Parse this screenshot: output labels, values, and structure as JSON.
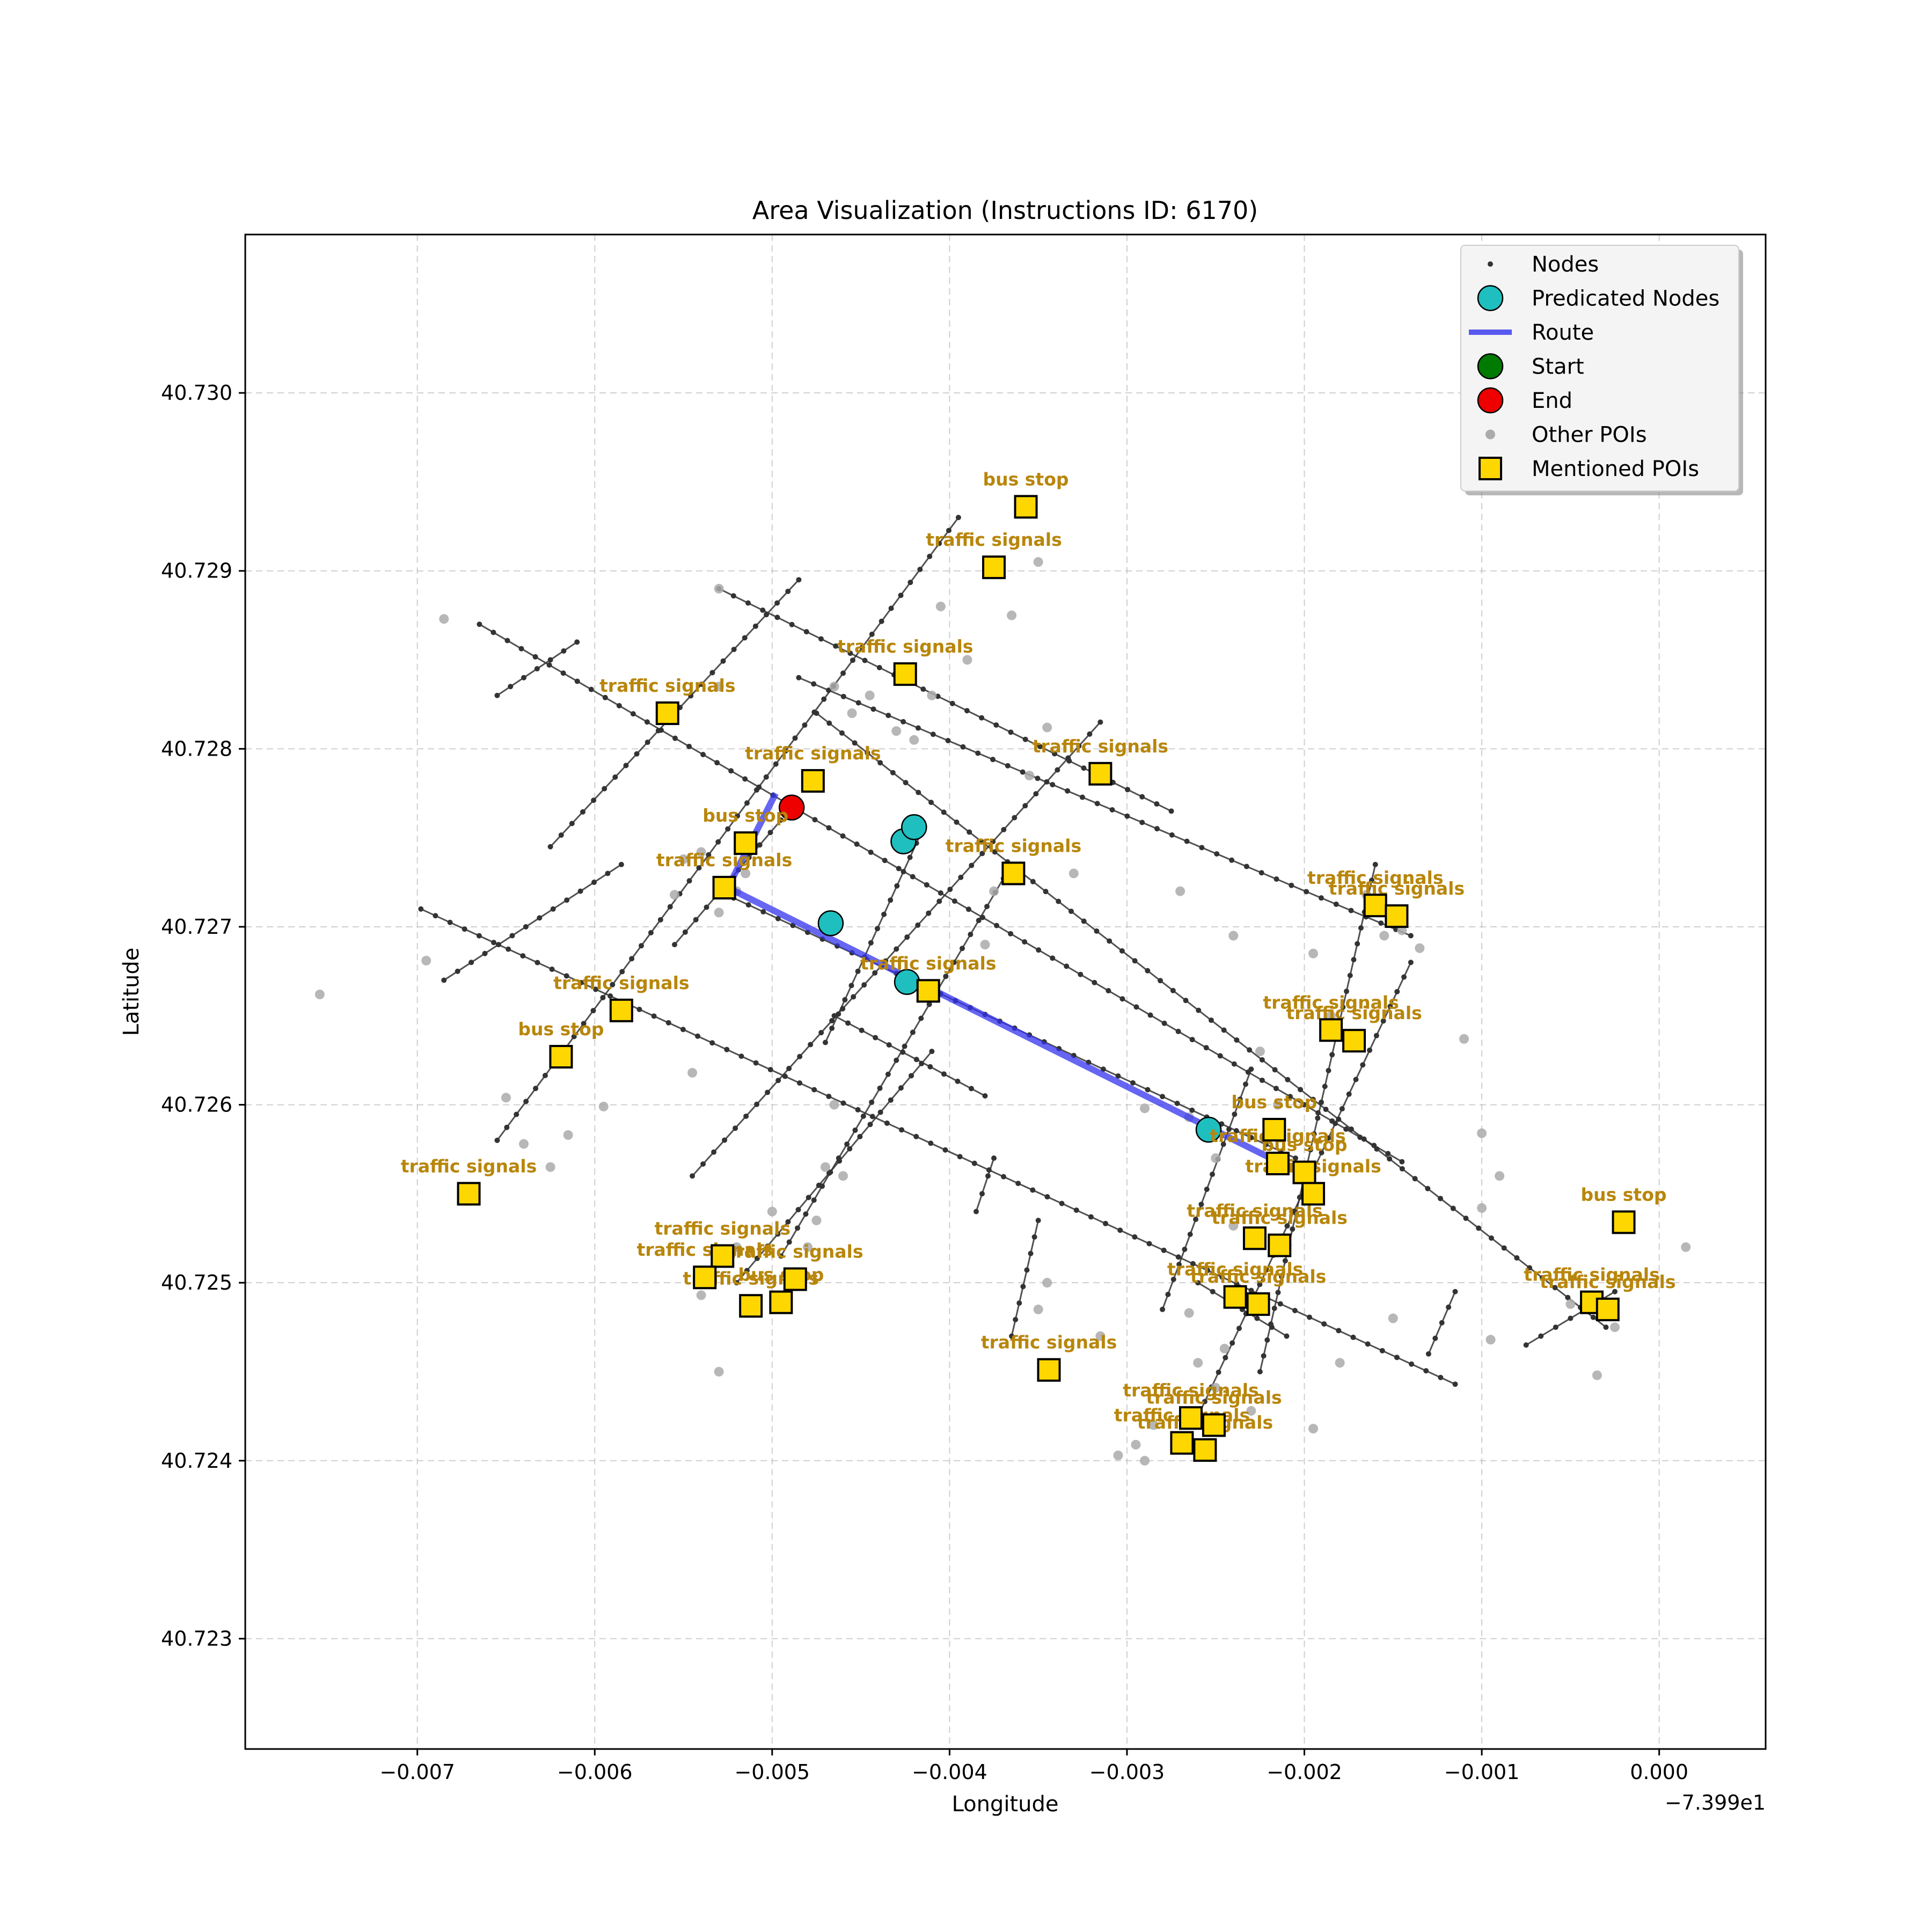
{
  "chart_data": {
    "type": "scatter",
    "title": "Area Visualization (Instructions ID: 6170)",
    "xlabel": "Longitude",
    "ylabel": "Latitude",
    "x_offset_label": "−7.399e1",
    "xlim": [
      -0.00797,
      0.0006
    ],
    "ylim": [
      40.72238,
      40.73089
    ],
    "xticks": [
      -0.007,
      -0.006,
      -0.005,
      -0.004,
      -0.003,
      -0.002,
      -0.001,
      0.0
    ],
    "xtick_labels": [
      "−0.007",
      "−0.006",
      "−0.005",
      "−0.004",
      "−0.003",
      "−0.002",
      "−0.001",
      "0.000"
    ],
    "yticks": [
      40.723,
      40.724,
      40.725,
      40.726,
      40.727,
      40.728,
      40.729,
      40.73
    ],
    "ytick_labels": [
      "40.723",
      "40.724",
      "40.725",
      "40.726",
      "40.727",
      "40.728",
      "40.729",
      "40.730"
    ],
    "grid": true,
    "legend_position": "top-right",
    "colors": {
      "nodes": "#333333",
      "predicated": "#1fbfbf",
      "route": "#3333ee",
      "start": "#007a00",
      "end": "#ee0000",
      "other_poi": "#aaaaaa",
      "mentioned_poi": "#ffd700",
      "poi_label": "#b8860b"
    },
    "legend": [
      {
        "key": "nodes",
        "label": "Nodes"
      },
      {
        "key": "predicated",
        "label": "Predicated Nodes"
      },
      {
        "key": "route",
        "label": "Route"
      },
      {
        "key": "start",
        "label": "Start"
      },
      {
        "key": "end",
        "label": "End"
      },
      {
        "key": "other_poi",
        "label": "Other POIs"
      },
      {
        "key": "mentioned_poi",
        "label": "Mentioned POIs"
      }
    ],
    "streets": [
      [
        [
          -0.00665,
          40.7287
        ],
        [
          -0.00145,
          40.72568
        ]
      ],
      [
        [
          -0.00698,
          40.7271
        ],
        [
          -0.00115,
          40.72443
        ]
      ],
      [
        [
          -0.0053,
          40.7289
        ],
        [
          -0.00275,
          40.72765
        ]
      ],
      [
        [
          -0.0053,
          40.7272
        ],
        [
          -0.00205,
          40.7257
        ]
      ],
      [
        [
          -0.00475,
          40.7282
        ],
        [
          -0.0003,
          40.72475
        ]
      ],
      [
        [
          -0.00485,
          40.7284
        ],
        [
          -0.0014,
          40.72695
        ]
      ],
      [
        [
          -0.00465,
          40.7265
        ],
        [
          -0.0038,
          40.72605
        ]
      ],
      [
        [
          -0.00625,
          40.72745
        ],
        [
          -0.00485,
          40.72895
        ]
      ],
      [
        [
          -0.00655,
          40.7258
        ],
        [
          -0.00395,
          40.7293
        ]
      ],
      [
        [
          -0.00545,
          40.7256
        ],
        [
          -0.00315,
          40.72815
        ]
      ],
      [
        [
          -0.0047,
          40.72635
        ],
        [
          -0.00415,
          40.72755
        ]
      ],
      [
        [
          -0.0052,
          40.725
        ],
        [
          -0.0041,
          40.7263
        ]
      ],
      [
        [
          -0.00495,
          40.72515
        ],
        [
          -0.00365,
          40.72735
        ]
      ],
      [
        [
          -0.00685,
          40.7267
        ],
        [
          -0.00585,
          40.72735
        ]
      ],
      [
        [
          -0.00555,
          40.7269
        ],
        [
          -0.00495,
          40.7276
        ]
      ],
      [
        [
          -0.00655,
          40.7283
        ],
        [
          -0.0061,
          40.7286
        ]
      ],
      [
        [
          -0.0028,
          40.72485
        ],
        [
          -0.0023,
          40.7262
        ]
      ],
      [
        [
          -0.00225,
          40.7245
        ],
        [
          -0.0016,
          40.72735
        ]
      ],
      [
        [
          -0.0026,
          40.72425
        ],
        [
          -0.0014,
          40.7268
        ]
      ],
      [
        [
          -0.00365,
          40.7247
        ],
        [
          -0.0035,
          40.72535
        ]
      ],
      [
        [
          -0.0013,
          40.7246
        ],
        [
          -0.00115,
          40.72495
        ]
      ],
      [
        [
          -0.00075,
          40.72465
        ],
        [
          -0.00025,
          40.72495
        ]
      ],
      [
        [
          -0.0026,
          40.725
        ],
        [
          -0.0021,
          40.7247
        ]
      ],
      [
        [
          -0.00385,
          40.7254
        ],
        [
          -0.00375,
          40.7257
        ]
      ]
    ],
    "route": [
      [
        -0.00498,
        40.72775
      ],
      [
        -0.00525,
        40.72722
      ],
      [
        -0.00215,
        40.72568
      ]
    ],
    "predicated_nodes": [
      [
        -0.00467,
        40.72702
      ],
      [
        -0.00426,
        40.72748
      ],
      [
        -0.0042,
        40.72756
      ],
      [
        -0.00424,
        40.72669
      ],
      [
        -0.00254,
        40.72586
      ]
    ],
    "start": [],
    "end": [
      [
        -0.00489,
        40.72767
      ]
    ],
    "other_pois": [
      [
        -0.00755,
        40.72662
      ],
      [
        -0.00685,
        40.72873
      ],
      [
        -0.00695,
        40.72681
      ],
      [
        -0.0065,
        40.72604
      ],
      [
        -0.0064,
        40.72578
      ],
      [
        -0.00625,
        40.72565
      ],
      [
        -0.00615,
        40.72583
      ],
      [
        -0.00595,
        40.72599
      ],
      [
        -0.00545,
        40.72618
      ],
      [
        -0.00555,
        40.72718
      ],
      [
        -0.0055,
        40.72738
      ],
      [
        -0.0054,
        40.72742
      ],
      [
        -0.0053,
        40.72708
      ],
      [
        -0.0052,
        40.7272
      ],
      [
        -0.00515,
        40.7273
      ],
      [
        -0.0052,
        40.7252
      ],
      [
        -0.005,
        40.7254
      ],
      [
        -0.0047,
        40.72565
      ],
      [
        -0.0048,
        40.7252
      ],
      [
        -0.00475,
        40.72535
      ],
      [
        -0.00465,
        40.726
      ],
      [
        -0.0046,
        40.7256
      ],
      [
        -0.0053,
        40.7289
      ],
      [
        -0.0053,
        40.72835
      ],
      [
        -0.00465,
        40.72835
      ],
      [
        -0.00455,
        40.7282
      ],
      [
        -0.00445,
        40.7283
      ],
      [
        -0.0043,
        40.7281
      ],
      [
        -0.0041,
        40.7283
      ],
      [
        -0.0039,
        40.7285
      ],
      [
        -0.00405,
        40.7288
      ],
      [
        -0.0042,
        40.72805
      ],
      [
        -0.0038,
        40.7269
      ],
      [
        -0.00375,
        40.7272
      ],
      [
        -0.0035,
        40.72905
      ],
      [
        -0.00365,
        40.72875
      ],
      [
        -0.00345,
        40.72812
      ],
      [
        -0.0033,
        40.7273
      ],
      [
        -0.00355,
        40.72785
      ],
      [
        -0.0027,
        40.7272
      ],
      [
        -0.0024,
        40.72695
      ],
      [
        -0.00225,
        40.7263
      ],
      [
        -0.00215,
        40.726
      ],
      [
        -0.00195,
        40.72685
      ],
      [
        -0.00185,
        40.7265
      ],
      [
        -0.00165,
        40.72718
      ],
      [
        -0.00155,
        40.72695
      ],
      [
        -0.00145,
        40.72698
      ],
      [
        -0.00135,
        40.72688
      ],
      [
        -0.0011,
        40.72637
      ],
      [
        -0.001,
        40.72584
      ],
      [
        -0.0009,
        40.7256
      ],
      [
        -0.001,
        40.72542
      ],
      [
        -0.00095,
        40.72468
      ],
      [
        -0.00035,
        40.72448
      ],
      [
        -0.0005,
        40.72488
      ],
      [
        -0.00025,
        40.72475
      ],
      [
        0.00015,
        40.7252
      ],
      [
        -0.00295,
        40.72409
      ],
      [
        -0.00285,
        40.7242
      ],
      [
        -0.0026,
        40.72455
      ],
      [
        -0.0025,
        40.72441
      ],
      [
        -0.0023,
        40.72428
      ],
      [
        -0.00195,
        40.72418
      ],
      [
        -0.0015,
        40.7248
      ],
      [
        -0.0018,
        40.72455
      ],
      [
        -0.0029,
        40.72598
      ],
      [
        -0.00265,
        40.72593
      ],
      [
        -0.0025,
        40.7257
      ],
      [
        -0.0024,
        40.72532
      ],
      [
        -0.00265,
        40.72483
      ],
      [
        -0.0035,
        40.72485
      ],
      [
        -0.00345,
        40.725
      ],
      [
        -0.00315,
        40.7247
      ],
      [
        -0.00245,
        40.72463
      ],
      [
        -0.00305,
        40.72403
      ],
      [
        -0.0029,
        40.724
      ],
      [
        -0.0053,
        40.7245
      ],
      [
        -0.0054,
        40.72493
      ]
    ],
    "mentioned_pois": [
      {
        "label": "bus stop",
        "x": -0.00357,
        "y": 40.72936
      },
      {
        "label": "traffic signals",
        "x": -0.00375,
        "y": 40.72902
      },
      {
        "label": "traffic signals",
        "x": -0.00425,
        "y": 40.72842
      },
      {
        "label": "traffic signals",
        "x": -0.00559,
        "y": 40.7282
      },
      {
        "label": "traffic signals",
        "x": -0.00477,
        "y": 40.72782
      },
      {
        "label": "traffic signals",
        "x": -0.00315,
        "y": 40.72786
      },
      {
        "label": "bus stop",
        "x": -0.00515,
        "y": 40.72747
      },
      {
        "label": "traffic signals",
        "x": -0.00364,
        "y": 40.7273
      },
      {
        "label": "traffic signals",
        "x": -0.00527,
        "y": 40.72722
      },
      {
        "label": "traffic signals",
        "x": -0.0016,
        "y": 40.72712
      },
      {
        "label": "traffic signals",
        "x": -0.00148,
        "y": 40.72706
      },
      {
        "label": "traffic signals",
        "x": -0.00412,
        "y": 40.72664
      },
      {
        "label": "traffic signals",
        "x": -0.00585,
        "y": 40.72653
      },
      {
        "label": "bus stop",
        "x": -0.00619,
        "y": 40.72627
      },
      {
        "label": "traffic signals",
        "x": -0.00185,
        "y": 40.72642
      },
      {
        "label": "traffic signals",
        "x": -0.00172,
        "y": 40.72636
      },
      {
        "label": "bus stop",
        "x": -0.00217,
        "y": 40.72586
      },
      {
        "label": "traffic signals",
        "x": -0.00215,
        "y": 40.72567
      },
      {
        "label": "bus stop",
        "x": -0.002,
        "y": 40.72562
      },
      {
        "label": "traffic signals",
        "x": -0.00195,
        "y": 40.7255
      },
      {
        "label": "traffic signals",
        "x": -0.00671,
        "y": 40.7255
      },
      {
        "label": "bus stop",
        "x": -0.0002,
        "y": 40.72534
      },
      {
        "label": "traffic signals",
        "x": -0.00228,
        "y": 40.72525
      },
      {
        "label": "traffic signals",
        "x": -0.00214,
        "y": 40.72521
      },
      {
        "label": "traffic signals",
        "x": -0.00528,
        "y": 40.72515
      },
      {
        "label": "traffic signals",
        "x": -0.00538,
        "y": 40.72503
      },
      {
        "label": "traffic signals",
        "x": -0.00487,
        "y": 40.72502
      },
      {
        "label": "bus stop",
        "x": -0.00495,
        "y": 40.72489
      },
      {
        "label": "traffic signals",
        "x": -0.00512,
        "y": 40.72487
      },
      {
        "label": "traffic signals",
        "x": -0.00239,
        "y": 40.72492
      },
      {
        "label": "traffic signals",
        "x": -0.00226,
        "y": 40.72488
      },
      {
        "label": "traffic signals",
        "x": -0.00038,
        "y": 40.72489
      },
      {
        "label": "traffic signals",
        "x": -0.00029,
        "y": 40.72485
      },
      {
        "label": "traffic signals",
        "x": -0.00344,
        "y": 40.72451
      },
      {
        "label": "traffic signals",
        "x": -0.00264,
        "y": 40.72424
      },
      {
        "label": "traffic signals",
        "x": -0.00251,
        "y": 40.7242
      },
      {
        "label": "traffic signals",
        "x": -0.00269,
        "y": 40.7241
      },
      {
        "label": "traffic signals",
        "x": -0.00256,
        "y": 40.72406
      }
    ]
  }
}
